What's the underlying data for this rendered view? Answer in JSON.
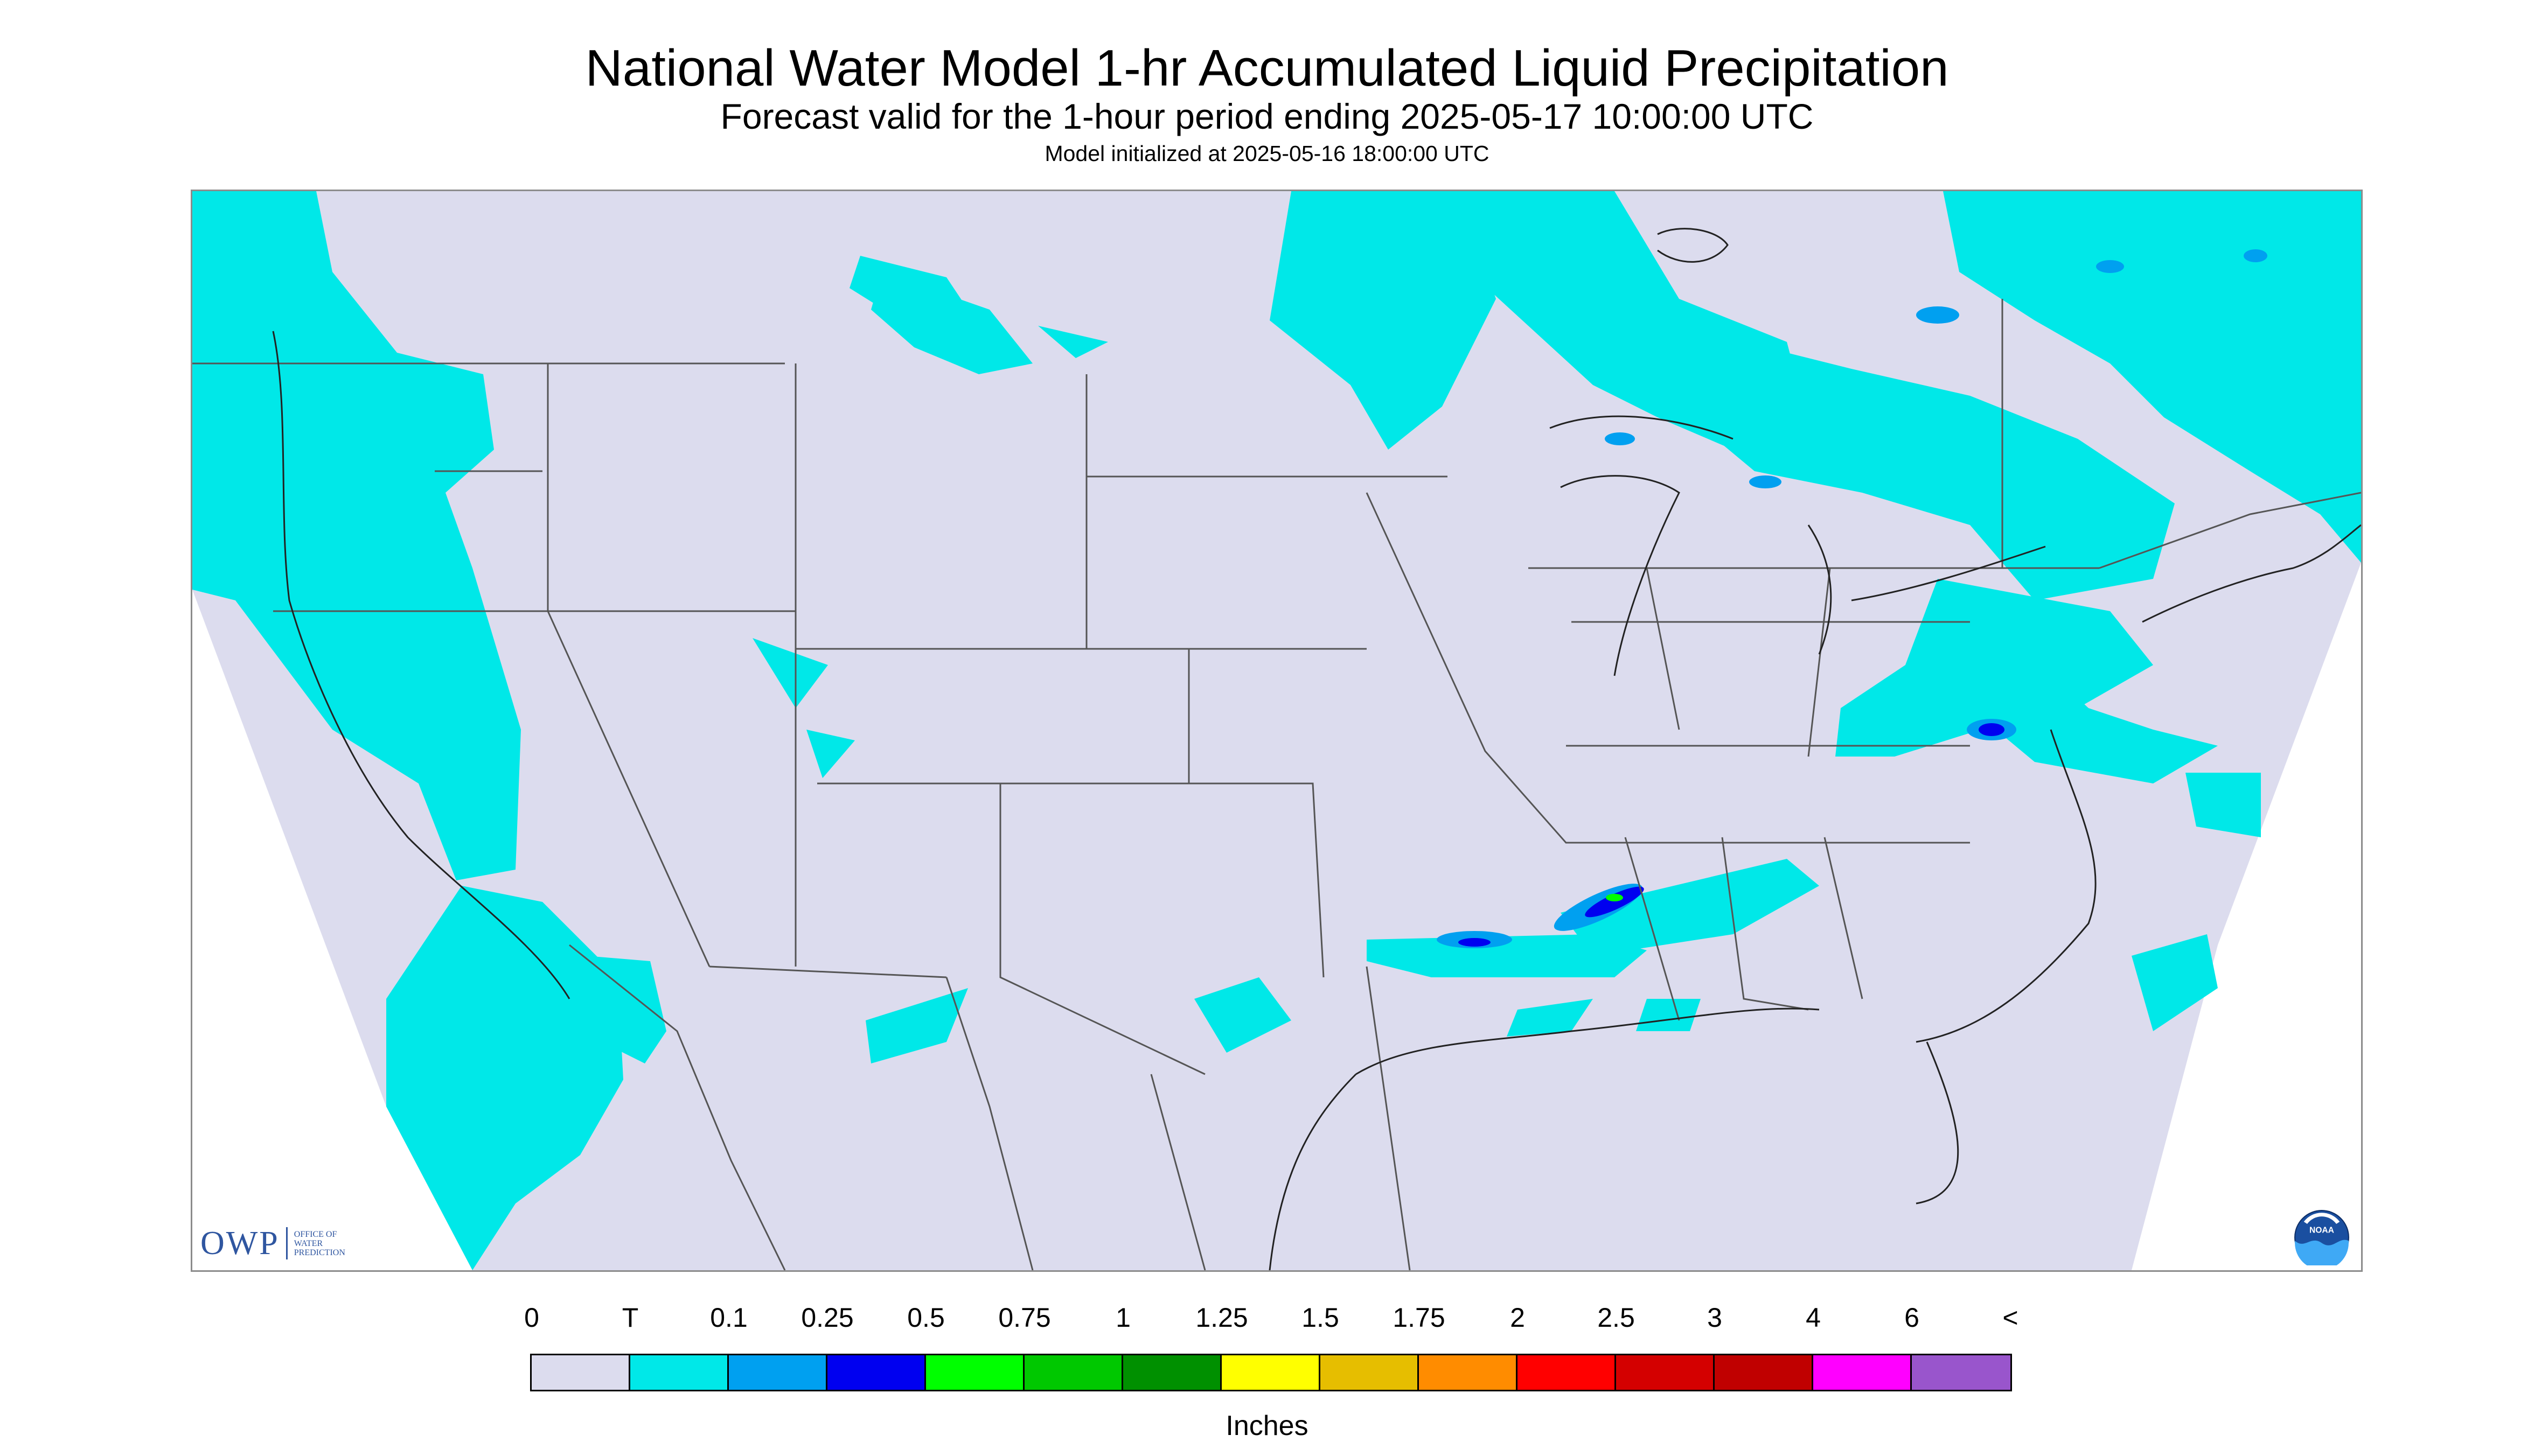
{
  "title": "National Water Model 1-hr Accumulated Liquid Precipitation",
  "subtitle": "Forecast valid for the 1-hour period ending 2025-05-17 10:00:00 UTC",
  "init_note": "Model initialized at 2025-05-16 18:00:00 UTC",
  "owp_logo": {
    "mark": "OWP",
    "lines": [
      "OFFICE OF",
      "WATER",
      "PREDICTION"
    ]
  },
  "noaa_logo": {
    "text": "NOAA"
  },
  "legend": {
    "labels": [
      "0",
      "T",
      "0.1",
      "0.25",
      "0.5",
      "0.75",
      "1",
      "1.25",
      "1.5",
      "1.75",
      "2",
      "2.5",
      "3",
      "4",
      "6",
      "<"
    ],
    "colors": [
      "#dcdcee",
      "#00e8e8",
      "#00a0f0",
      "#0000f0",
      "#00ff00",
      "#00c800",
      "#009000",
      "#ffff00",
      "#e6be00",
      "#ff8c00",
      "#ff0000",
      "#d40000",
      "#c00000",
      "#ff00ff",
      "#9955cc"
    ],
    "units": "Inches"
  },
  "colors": {
    "land_no_precip": "#dcdcee",
    "trace": "#00e8e8",
    "light": "#00a0f0",
    "moderate": "#0000f0",
    "heavy": "#00ff00",
    "boundary": "#555555"
  }
}
